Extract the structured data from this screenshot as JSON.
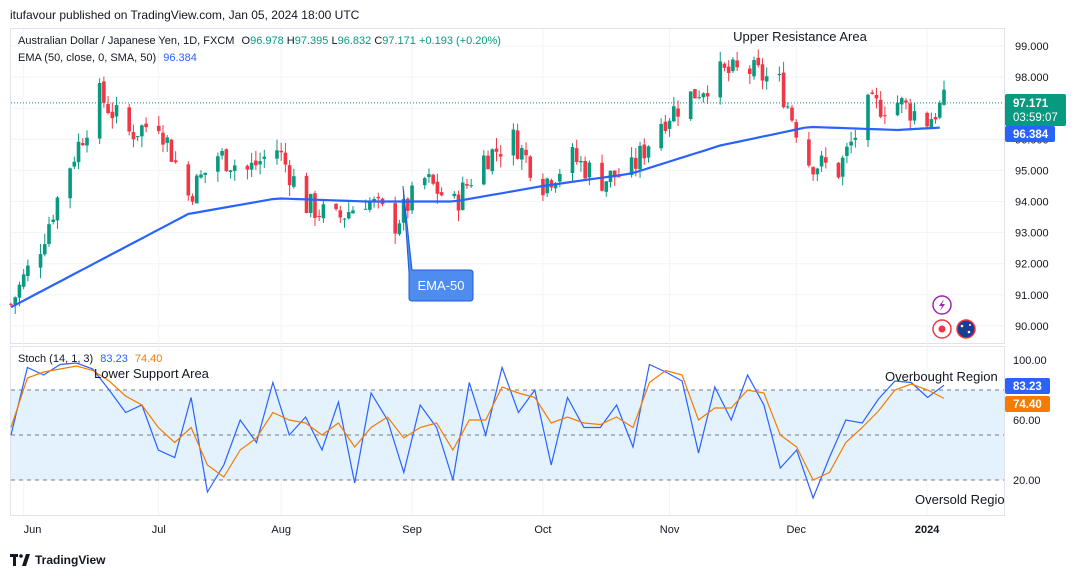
{
  "header": {
    "published": "itufavour published on TradingView.com, Jan 05, 2024 18:00 UTC"
  },
  "legend": {
    "symbol": "Australian Dollar / Japanese Yen, 1D, FXCM",
    "o_label": "O",
    "o_value": "96.978",
    "h_label": "H",
    "h_value": "97.395",
    "l_label": "L",
    "l_value": "96.832",
    "c_label": "C",
    "c_value": "97.171",
    "change": "+0.193 (+0.20%)",
    "ema_label": "EMA (50, close, 0, SMA, 50)",
    "ema_value": "96.384",
    "stoch_label": "Stoch (14, 1, 3)",
    "stoch_k": "83.23",
    "stoch_d": "74.40"
  },
  "annotations": {
    "upper": "Upper Resistance Area",
    "ema_callout": "EMA-50",
    "lower": "Lower Support Area",
    "overbought": "Overbought Region",
    "oversold": "Oversold Regio"
  },
  "price_tags": {
    "last": "97.171",
    "countdown": "03:59:07",
    "ema": "96.384"
  },
  "stoch_tags": {
    "k": "83.23",
    "d": "74.40"
  },
  "price_axis": [
    "99.000",
    "98.000",
    "97.000",
    "96.000",
    "95.000",
    "94.000",
    "93.000",
    "92.000",
    "91.000",
    "90.000"
  ],
  "stoch_axis": [
    "100.00",
    "60.00",
    "20.00"
  ],
  "time_axis": [
    "Jun",
    "Jul",
    "Aug",
    "Sep",
    "Oct",
    "Nov",
    "Dec",
    "2024"
  ],
  "colors": {
    "up": "#089981",
    "down": "#f23645",
    "ema": "#2962ff",
    "k": "#2962ff",
    "d": "#f57c00",
    "band": "#e3f2fd"
  },
  "footer": {
    "brand": "TradingView"
  },
  "chart_data": [
    {
      "type": "candlestick",
      "title": "Australian Dollar / Japanese Yen, 1D, FXCM",
      "ylim": [
        89.6,
        99.6
      ],
      "x_range": [
        "2023-05-29",
        "2024-01-05"
      ],
      "last_close": 97.171,
      "ema50_last": 96.384,
      "close_path": [
        {
          "date": "2023-05-29",
          "close": 90.7
        },
        {
          "date": "2023-06-05",
          "close": 92.6
        },
        {
          "date": "2023-06-12",
          "close": 95.2
        },
        {
          "date": "2023-06-19",
          "close": 97.4
        },
        {
          "date": "2023-06-26",
          "close": 96.2
        },
        {
          "date": "2023-07-03",
          "close": 96.6
        },
        {
          "date": "2023-07-10",
          "close": 94.2
        },
        {
          "date": "2023-07-17",
          "close": 95.5
        },
        {
          "date": "2023-07-24",
          "close": 95.0
        },
        {
          "date": "2023-07-31",
          "close": 95.7
        },
        {
          "date": "2023-08-07",
          "close": 93.9
        },
        {
          "date": "2023-08-14",
          "close": 93.4
        },
        {
          "date": "2023-08-21",
          "close": 94.1
        },
        {
          "date": "2023-08-28",
          "close": 93.3
        },
        {
          "date": "2023-09-04",
          "close": 94.7
        },
        {
          "date": "2023-09-11",
          "close": 93.9
        },
        {
          "date": "2023-09-18",
          "close": 95.4
        },
        {
          "date": "2023-09-25",
          "close": 96.0
        },
        {
          "date": "2023-10-02",
          "close": 94.6
        },
        {
          "date": "2023-10-09",
          "close": 95.4
        },
        {
          "date": "2023-10-16",
          "close": 94.7
        },
        {
          "date": "2023-10-23",
          "close": 95.0
        },
        {
          "date": "2023-10-30",
          "close": 96.6
        },
        {
          "date": "2023-11-06",
          "close": 97.4
        },
        {
          "date": "2023-11-13",
          "close": 98.1
        },
        {
          "date": "2023-11-20",
          "close": 98.2
        },
        {
          "date": "2023-11-27",
          "close": 97.8
        },
        {
          "date": "2023-12-04",
          "close": 95.3
        },
        {
          "date": "2023-12-11",
          "close": 95.0
        },
        {
          "date": "2023-12-18",
          "close": 97.0
        },
        {
          "date": "2023-12-25",
          "close": 97.2
        },
        {
          "date": "2024-01-01",
          "close": 96.6
        },
        {
          "date": "2024-01-05",
          "close": 97.171
        }
      ],
      "ema50_path": [
        {
          "date": "2023-05-29",
          "value": 90.6
        },
        {
          "date": "2023-06-19",
          "value": 92.1
        },
        {
          "date": "2023-07-10",
          "value": 93.6
        },
        {
          "date": "2023-07-31",
          "value": 94.1
        },
        {
          "date": "2023-08-21",
          "value": 94.0
        },
        {
          "date": "2023-09-11",
          "value": 94.0
        },
        {
          "date": "2023-10-02",
          "value": 94.5
        },
        {
          "date": "2023-10-23",
          "value": 94.9
        },
        {
          "date": "2023-11-13",
          "value": 95.8
        },
        {
          "date": "2023-12-04",
          "value": 96.4
        },
        {
          "date": "2023-12-25",
          "value": 96.3
        },
        {
          "date": "2024-01-05",
          "value": 96.384
        }
      ]
    },
    {
      "type": "line",
      "title": "Stoch (14, 1, 3)",
      "ylim": [
        0,
        108
      ],
      "levels": [
        80,
        50,
        20
      ],
      "series": [
        {
          "name": "%K",
          "last": 83.23,
          "values": [
            50,
            95,
            90,
            97,
            98,
            94,
            80,
            65,
            70,
            40,
            35,
            75,
            12,
            30,
            60,
            45,
            85,
            50,
            62,
            40,
            72,
            18,
            78,
            60,
            25,
            70,
            55,
            20,
            85,
            50,
            95,
            65,
            80,
            30,
            75,
            55,
            55,
            70,
            42,
            97,
            92,
            86,
            38,
            82,
            60,
            90,
            70,
            28,
            40,
            8,
            35,
            60,
            58,
            74,
            86,
            85,
            75,
            83.23
          ]
        },
        {
          "name": "%D",
          "last": 74.4,
          "values": [
            55,
            88,
            92,
            94,
            96,
            93,
            86,
            76,
            70,
            55,
            45,
            55,
            30,
            22,
            40,
            48,
            65,
            60,
            58,
            50,
            58,
            42,
            55,
            62,
            48,
            55,
            58,
            40,
            60,
            60,
            82,
            78,
            75,
            58,
            62,
            58,
            57,
            62,
            55,
            85,
            93,
            90,
            60,
            68,
            68,
            80,
            78,
            50,
            42,
            20,
            25,
            45,
            55,
            66,
            80,
            84,
            80,
            74.4
          ]
        }
      ]
    }
  ]
}
